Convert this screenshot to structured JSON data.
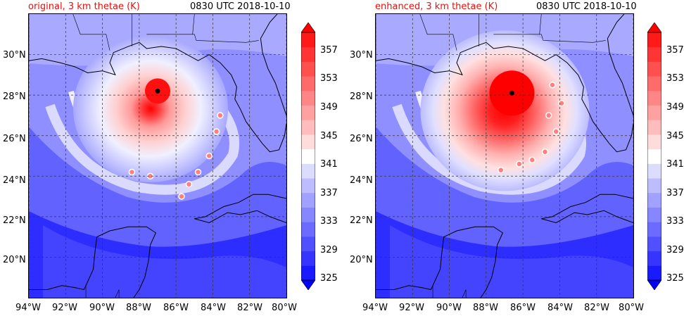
{
  "panels": [
    {
      "title": "original, 3 km thetae (K)",
      "time": "0830 UTC 2018-10-10",
      "storm_center": {
        "lon": -87.0,
        "lat": 28.2
      },
      "intensity": "original"
    },
    {
      "title": "enhanced, 3 km thetae (K)",
      "time": "0830 UTC 2018-10-10",
      "storm_center": {
        "lon": -86.6,
        "lat": 28.1
      },
      "intensity": "enhanced"
    }
  ],
  "map_extent": {
    "lon": [
      -94,
      -80
    ],
    "lat": [
      18,
      32
    ]
  },
  "lat_labels": [
    "30°N",
    "28°N",
    "26°N",
    "24°N",
    "22°N",
    "20°N"
  ],
  "lat_values": [
    30,
    28,
    26,
    24,
    22,
    20
  ],
  "lon_labels": [
    "94°W",
    "92°W",
    "90°W",
    "88°W",
    "86°W",
    "84°W",
    "82°W",
    "80°W"
  ],
  "lon_values": [
    -94,
    -92,
    -90,
    -88,
    -86,
    -84,
    -82,
    -80
  ],
  "colorbar": {
    "labels": [
      "357",
      "353",
      "349",
      "345",
      "341",
      "337",
      "333",
      "329",
      "325"
    ],
    "levels": [
      325,
      327,
      329,
      331,
      333,
      335,
      337,
      339,
      341,
      343,
      345,
      347,
      349,
      351,
      353,
      355,
      357,
      359
    ],
    "colors": [
      "#0000ff",
      "#1a1aff",
      "#3535ff",
      "#5050ff",
      "#6b6bff",
      "#8686ff",
      "#a1a1ff",
      "#bcbcff",
      "#dcdcff",
      "#ffffff",
      "#ffdcdc",
      "#ffbcbc",
      "#ffa1a1",
      "#ff8686",
      "#ff6b6b",
      "#ff5050",
      "#ff3535",
      "#ff1a1a",
      "#ff0000"
    ]
  }
}
